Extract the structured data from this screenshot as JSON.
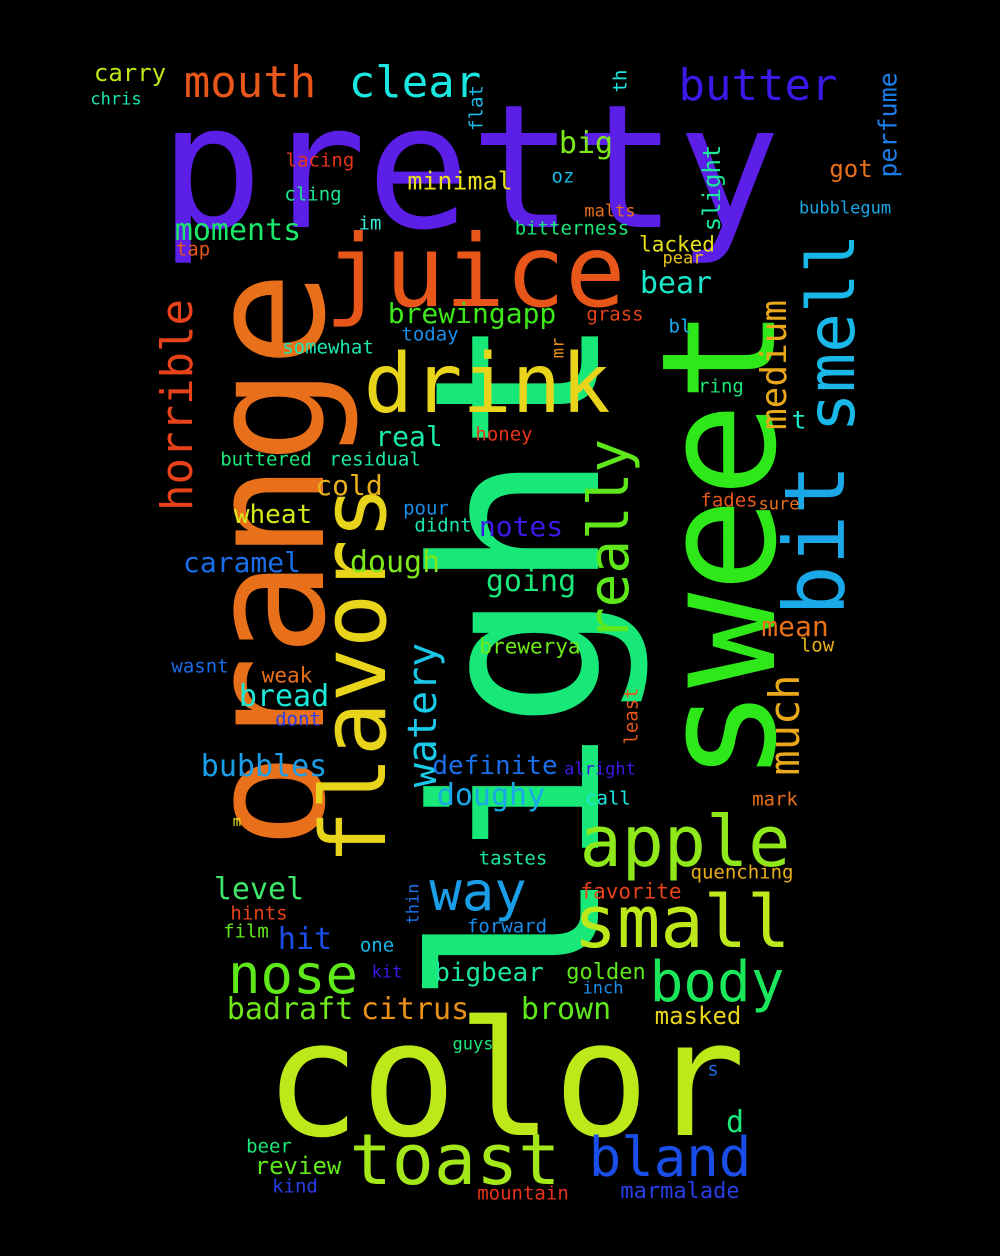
{
  "background": "#000000",
  "words": [
    {
      "text": "pretty",
      "color": "#5b1fe8"
    },
    {
      "text": "light",
      "color": "#17e878"
    },
    {
      "text": "orange",
      "color": "#e8701a"
    },
    {
      "text": "sweet",
      "color": "#2ee81a"
    },
    {
      "text": "color",
      "color": "#bde81a"
    },
    {
      "text": "juice",
      "color": "#e8561a"
    },
    {
      "text": "flavors",
      "color": "#e8d41a"
    },
    {
      "text": "drink",
      "color": "#e8d41a"
    },
    {
      "text": "bit",
      "color": "#1aa8e8"
    },
    {
      "text": "smell",
      "color": "#1ab8e8"
    },
    {
      "text": "really",
      "color": "#5ee81a"
    },
    {
      "text": "apple",
      "color": "#8ee81a"
    },
    {
      "text": "small",
      "color": "#bde81a"
    },
    {
      "text": "toast",
      "color": "#a5e81a"
    },
    {
      "text": "way",
      "color": "#1a9ee8"
    },
    {
      "text": "nose",
      "color": "#5ee81a"
    },
    {
      "text": "body",
      "color": "#1ae85a"
    },
    {
      "text": "bland",
      "color": "#1a4ee8"
    },
    {
      "text": "watery",
      "color": "#1ac8e8"
    },
    {
      "text": "much",
      "color": "#e8a81a"
    },
    {
      "text": "medium",
      "color": "#e8a81a"
    },
    {
      "text": "horrible",
      "color": "#e8421a"
    },
    {
      "text": "mouth",
      "color": "#e8561a"
    },
    {
      "text": "clear",
      "color": "#1ae8e0"
    },
    {
      "text": "butter",
      "color": "#3a1ae8"
    },
    {
      "text": "moments",
      "color": "#1ae86a"
    },
    {
      "text": "brewingapp",
      "color": "#3ee81a"
    },
    {
      "text": "big",
      "color": "#7ee81a"
    },
    {
      "text": "minimal",
      "color": "#e8e01a"
    },
    {
      "text": "bear",
      "color": "#1ae8c8"
    },
    {
      "text": "real",
      "color": "#1ae8a8"
    },
    {
      "text": "cold",
      "color": "#e8b01a"
    },
    {
      "text": "wheat",
      "color": "#d4e81a"
    },
    {
      "text": "notes",
      "color": "#3a1ae8"
    },
    {
      "text": "dough",
      "color": "#7ee81a"
    },
    {
      "text": "caramel",
      "color": "#1a6ee8"
    },
    {
      "text": "going",
      "color": "#1ae87a"
    },
    {
      "text": "mean",
      "color": "#e8701a"
    },
    {
      "text": "bread",
      "color": "#1ae8d8"
    },
    {
      "text": "bubbles",
      "color": "#1a9ee8"
    },
    {
      "text": "definite",
      "color": "#1a6ee8"
    },
    {
      "text": "doughy",
      "color": "#1aa8e8"
    },
    {
      "text": "level",
      "color": "#3ee86a"
    },
    {
      "text": "hit",
      "color": "#1a4ee8"
    },
    {
      "text": "badraft",
      "color": "#6ee81a"
    },
    {
      "text": "citrus",
      "color": "#e8901a"
    },
    {
      "text": "brown",
      "color": "#5ee81a"
    },
    {
      "text": "bigbear",
      "color": "#1ae89a"
    },
    {
      "text": "golden",
      "color": "#5ee81a"
    },
    {
      "text": "masked",
      "color": "#e8d41a"
    },
    {
      "text": "review",
      "color": "#5ee81a"
    },
    {
      "text": "marmalade",
      "color": "#2a3ee8"
    },
    {
      "text": "carry",
      "color": "#bde81a"
    },
    {
      "text": "chris",
      "color": "#1ae8b0"
    },
    {
      "text": "lacing",
      "color": "#e8321a"
    },
    {
      "text": "cling",
      "color": "#1ae890"
    },
    {
      "text": "im",
      "color": "#3ae8d8"
    },
    {
      "text": "tap",
      "color": "#e8561a"
    },
    {
      "text": "flat",
      "color": "#1ab8e8"
    },
    {
      "text": "th",
      "color": "#1ae8e0"
    },
    {
      "text": "perfume",
      "color": "#1a7ee8"
    },
    {
      "text": "slight",
      "color": "#1ae89a"
    },
    {
      "text": "got",
      "color": "#e8701a"
    },
    {
      "text": "bubblegum",
      "color": "#1aa8e8"
    },
    {
      "text": "oz",
      "color": "#1ab8e8"
    },
    {
      "text": "malts",
      "color": "#e8701a"
    },
    {
      "text": "bitterness",
      "color": "#1ae87a"
    },
    {
      "text": "lacked",
      "color": "#e8e01a"
    },
    {
      "text": "pear",
      "color": "#e8c01a"
    },
    {
      "text": "grass",
      "color": "#e8421a"
    },
    {
      "text": "bl",
      "color": "#1aa8e8"
    },
    {
      "text": "today",
      "color": "#1a8ee8"
    },
    {
      "text": "somewhat",
      "color": "#1ae8b0"
    },
    {
      "text": "mr",
      "color": "#e8901a"
    },
    {
      "text": "ring",
      "color": "#1ae87a"
    },
    {
      "text": "t",
      "color": "#1ae8c8"
    },
    {
      "text": "honey",
      "color": "#e8321a"
    },
    {
      "text": "buttered",
      "color": "#1ae87a"
    },
    {
      "text": "residual",
      "color": "#1ae8a8"
    },
    {
      "text": "fades",
      "color": "#e8561a"
    },
    {
      "text": "sure",
      "color": "#e8701a"
    },
    {
      "text": "pour",
      "color": "#1a8ee8"
    },
    {
      "text": "didnt",
      "color": "#1ae8b0"
    },
    {
      "text": "brewerya",
      "color": "#6ee81a"
    },
    {
      "text": "low",
      "color": "#e8b01a"
    },
    {
      "text": "wasnt",
      "color": "#1a6ee8"
    },
    {
      "text": "weak",
      "color": "#e8701a"
    },
    {
      "text": "dont",
      "color": "#2a3ee8"
    },
    {
      "text": "least",
      "color": "#e8561a"
    },
    {
      "text": "alright",
      "color": "#3a1ae8"
    },
    {
      "text": "call",
      "color": "#1ae8e0"
    },
    {
      "text": "mark",
      "color": "#e8701a"
    },
    {
      "text": "m",
      "color": "#e8e01a"
    },
    {
      "text": "tastes",
      "color": "#1ae8a8"
    },
    {
      "text": "quenching",
      "color": "#e8b01a"
    },
    {
      "text": "favorite",
      "color": "#e8421a"
    },
    {
      "text": "hints",
      "color": "#e8421a"
    },
    {
      "text": "thin",
      "color": "#1a6ee8"
    },
    {
      "text": "film",
      "color": "#5ee81a"
    },
    {
      "text": "forward",
      "color": "#1a8ee8"
    },
    {
      "text": "one",
      "color": "#1ab8e8"
    },
    {
      "text": "kit",
      "color": "#3a1ae8"
    },
    {
      "text": "inch",
      "color": "#1a8ee8"
    },
    {
      "text": "guys",
      "color": "#1ae87a"
    },
    {
      "text": "s",
      "color": "#1a6ee8"
    },
    {
      "text": "d",
      "color": "#1ae87a"
    },
    {
      "text": "beer",
      "color": "#1ae87a"
    },
    {
      "text": "kind",
      "color": "#2a3ee8"
    },
    {
      "text": "mountain",
      "color": "#e8321a"
    }
  ]
}
